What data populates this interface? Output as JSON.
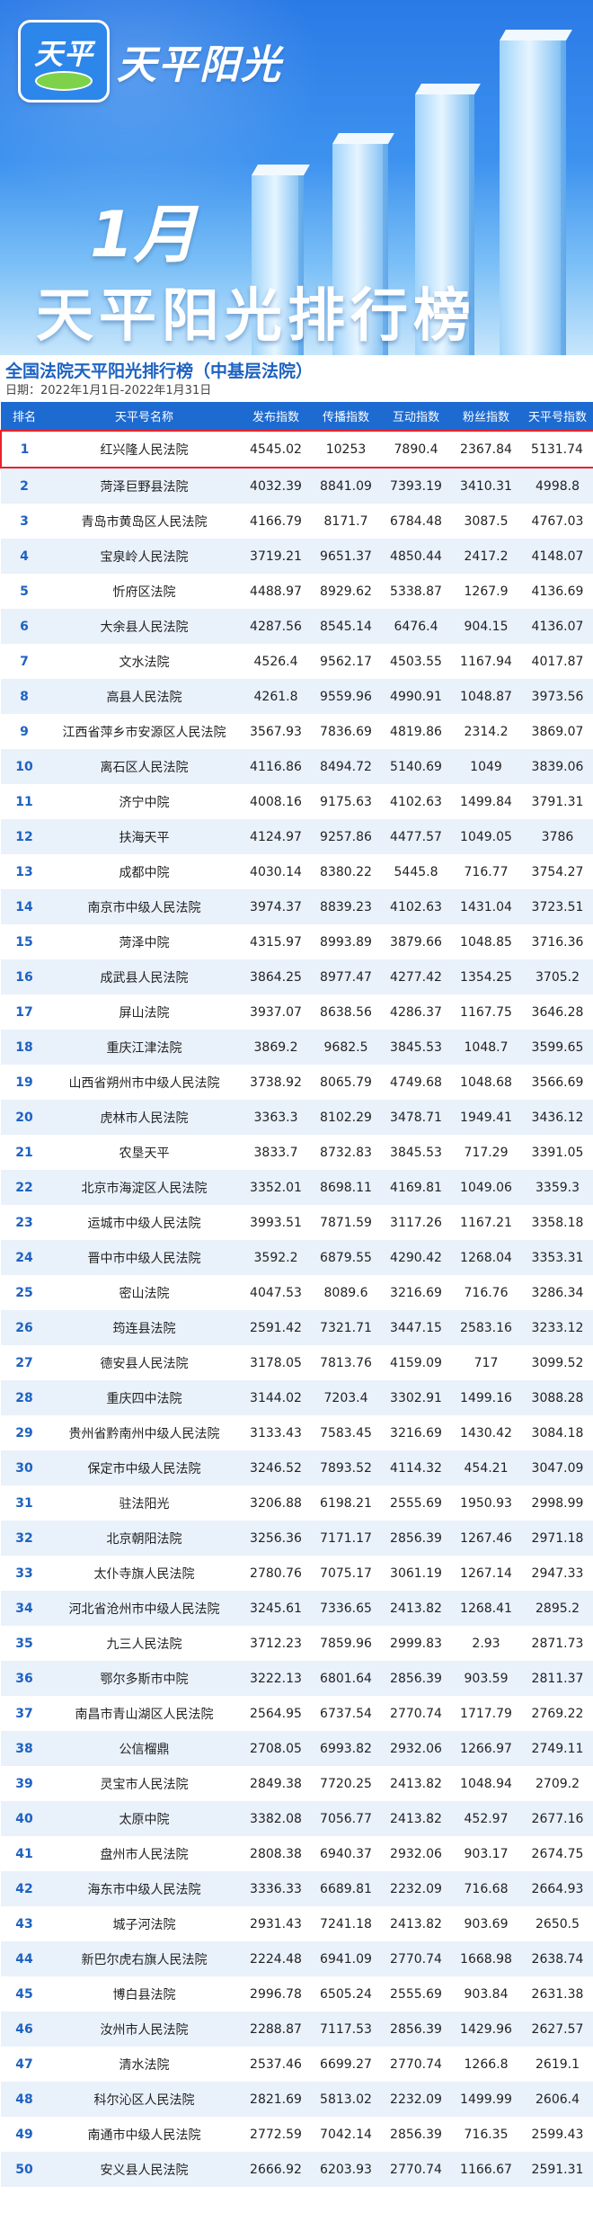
{
  "banner": {
    "logo_text": "天平",
    "brand": "天平阳光",
    "month": "1月",
    "title": "天平阳光排行榜"
  },
  "subhead": {
    "title": "全国法院天平阳光排行榜（中基层法院）",
    "date": "日期：2022年1月1日-2022年1月31日"
  },
  "table": {
    "headers": [
      "排名",
      "天平号名称",
      "发布指数",
      "传播指数",
      "互动指数",
      "粉丝指数",
      "天平号指数"
    ],
    "rows": [
      [
        "1",
        "红兴隆人民法院",
        "4545.02",
        "10253",
        "7890.4",
        "2367.84",
        "5131.74"
      ],
      [
        "2",
        "菏泽巨野县法院",
        "4032.39",
        "8841.09",
        "7393.19",
        "3410.31",
        "4998.8"
      ],
      [
        "3",
        "青岛市黄岛区人民法院",
        "4166.79",
        "8171.7",
        "6784.48",
        "3087.5",
        "4767.03"
      ],
      [
        "4",
        "宝泉岭人民法院",
        "3719.21",
        "9651.37",
        "4850.44",
        "2417.2",
        "4148.07"
      ],
      [
        "5",
        "忻府区法院",
        "4488.97",
        "8929.62",
        "5338.87",
        "1267.9",
        "4136.69"
      ],
      [
        "6",
        "大余县人民法院",
        "4287.56",
        "8545.14",
        "6476.4",
        "904.15",
        "4136.07"
      ],
      [
        "7",
        "文水法院",
        "4526.4",
        "9562.17",
        "4503.55",
        "1167.94",
        "4017.87"
      ],
      [
        "8",
        "高县人民法院",
        "4261.8",
        "9559.96",
        "4990.91",
        "1048.87",
        "3973.56"
      ],
      [
        "9",
        "江西省萍乡市安源区人民法院",
        "3567.93",
        "7836.69",
        "4819.86",
        "2314.2",
        "3869.07"
      ],
      [
        "10",
        "离石区人民法院",
        "4116.86",
        "8494.72",
        "5140.69",
        "1049",
        "3839.06"
      ],
      [
        "11",
        "济宁中院",
        "4008.16",
        "9175.63",
        "4102.63",
        "1499.84",
        "3791.31"
      ],
      [
        "12",
        "扶海天平",
        "4124.97",
        "9257.86",
        "4477.57",
        "1049.05",
        "3786"
      ],
      [
        "13",
        "成都中院",
        "4030.14",
        "8380.22",
        "5445.8",
        "716.77",
        "3754.27"
      ],
      [
        "14",
        "南京市中级人民法院",
        "3974.37",
        "8839.23",
        "4102.63",
        "1431.04",
        "3723.51"
      ],
      [
        "15",
        "菏泽中院",
        "4315.97",
        "8993.89",
        "3879.66",
        "1048.85",
        "3716.36"
      ],
      [
        "16",
        "成武县人民法院",
        "3864.25",
        "8977.47",
        "4277.42",
        "1354.25",
        "3705.2"
      ],
      [
        "17",
        "屏山法院",
        "3937.07",
        "8638.56",
        "4286.37",
        "1167.75",
        "3646.28"
      ],
      [
        "18",
        "重庆江津法院",
        "3869.2",
        "9682.5",
        "3845.53",
        "1048.7",
        "3599.65"
      ],
      [
        "19",
        "山西省朔州市中级人民法院",
        "3738.92",
        "8065.79",
        "4749.68",
        "1048.68",
        "3566.69"
      ],
      [
        "20",
        "虎林市人民法院",
        "3363.3",
        "8102.29",
        "3478.71",
        "1949.41",
        "3436.12"
      ],
      [
        "21",
        "农垦天平",
        "3833.7",
        "8732.83",
        "3845.53",
        "717.29",
        "3391.05"
      ],
      [
        "22",
        "北京市海淀区人民法院",
        "3352.01",
        "8698.11",
        "4169.81",
        "1049.06",
        "3359.3"
      ],
      [
        "23",
        "运城市中级人民法院",
        "3993.51",
        "7871.59",
        "3117.26",
        "1167.21",
        "3358.18"
      ],
      [
        "24",
        "晋中市中级人民法院",
        "3592.2",
        "6879.55",
        "4290.42",
        "1268.04",
        "3353.31"
      ],
      [
        "25",
        "密山法院",
        "4047.53",
        "8089.6",
        "3216.69",
        "716.76",
        "3286.34"
      ],
      [
        "26",
        "筠连县法院",
        "2591.42",
        "7321.71",
        "3447.15",
        "2583.16",
        "3233.12"
      ],
      [
        "27",
        "德安县人民法院",
        "3178.05",
        "7813.76",
        "4159.09",
        "717",
        "3099.52"
      ],
      [
        "28",
        "重庆四中法院",
        "3144.02",
        "7203.4",
        "3302.91",
        "1499.16",
        "3088.28"
      ],
      [
        "29",
        "贵州省黔南州中级人民法院",
        "3133.43",
        "7583.45",
        "3216.69",
        "1430.42",
        "3084.18"
      ],
      [
        "30",
        "保定市中级人民法院",
        "3246.52",
        "7893.52",
        "4114.32",
        "454.21",
        "3047.09"
      ],
      [
        "31",
        "驻法阳光",
        "3206.88",
        "6198.21",
        "2555.69",
        "1950.93",
        "2998.99"
      ],
      [
        "32",
        "北京朝阳法院",
        "3256.36",
        "7171.17",
        "2856.39",
        "1267.46",
        "2971.18"
      ],
      [
        "33",
        "太仆寺旗人民法院",
        "2780.76",
        "7075.17",
        "3061.19",
        "1267.14",
        "2947.33"
      ],
      [
        "34",
        "河北省沧州市中级人民法院",
        "3245.61",
        "7336.65",
        "2413.82",
        "1268.41",
        "2895.2"
      ],
      [
        "35",
        "九三人民法院",
        "3712.23",
        "7859.96",
        "2999.83",
        "2.93",
        "2871.73"
      ],
      [
        "36",
        "鄂尔多斯市中院",
        "3222.13",
        "6801.64",
        "2856.39",
        "903.59",
        "2811.37"
      ],
      [
        "37",
        "南昌市青山湖区人民法院",
        "2564.95",
        "6737.54",
        "2770.74",
        "1717.79",
        "2769.22"
      ],
      [
        "38",
        "公信榴鼎",
        "2708.05",
        "6993.82",
        "2932.06",
        "1266.97",
        "2749.11"
      ],
      [
        "39",
        "灵宝市人民法院",
        "2849.38",
        "7720.25",
        "2413.82",
        "1048.94",
        "2709.2"
      ],
      [
        "40",
        "太原中院",
        "3382.08",
        "7056.77",
        "2413.82",
        "452.97",
        "2677.16"
      ],
      [
        "41",
        "盘州市人民法院",
        "2808.38",
        "6940.37",
        "2932.06",
        "903.17",
        "2674.75"
      ],
      [
        "42",
        "海东市中级人民法院",
        "3336.33",
        "6689.81",
        "2232.09",
        "716.68",
        "2664.93"
      ],
      [
        "43",
        "城子河法院",
        "2931.43",
        "7241.18",
        "2413.82",
        "903.69",
        "2650.5"
      ],
      [
        "44",
        "新巴尔虎右旗人民法院",
        "2224.48",
        "6941.09",
        "2770.74",
        "1668.98",
        "2638.74"
      ],
      [
        "45",
        "博白县法院",
        "2996.78",
        "6505.24",
        "2555.69",
        "903.84",
        "2631.38"
      ],
      [
        "46",
        "汝州市人民法院",
        "2288.87",
        "7117.53",
        "2856.39",
        "1429.96",
        "2627.57"
      ],
      [
        "47",
        "清水法院",
        "2537.46",
        "6699.27",
        "2770.74",
        "1266.8",
        "2619.1"
      ],
      [
        "48",
        "科尔沁区人民法院",
        "2821.69",
        "5813.02",
        "2232.09",
        "1499.99",
        "2606.4"
      ],
      [
        "49",
        "南通市中级人民法院",
        "2772.59",
        "7042.14",
        "2856.39",
        "716.35",
        "2599.43"
      ],
      [
        "50",
        "安义县人民法院",
        "2666.92",
        "6203.93",
        "2770.74",
        "1166.67",
        "2591.31"
      ]
    ]
  }
}
